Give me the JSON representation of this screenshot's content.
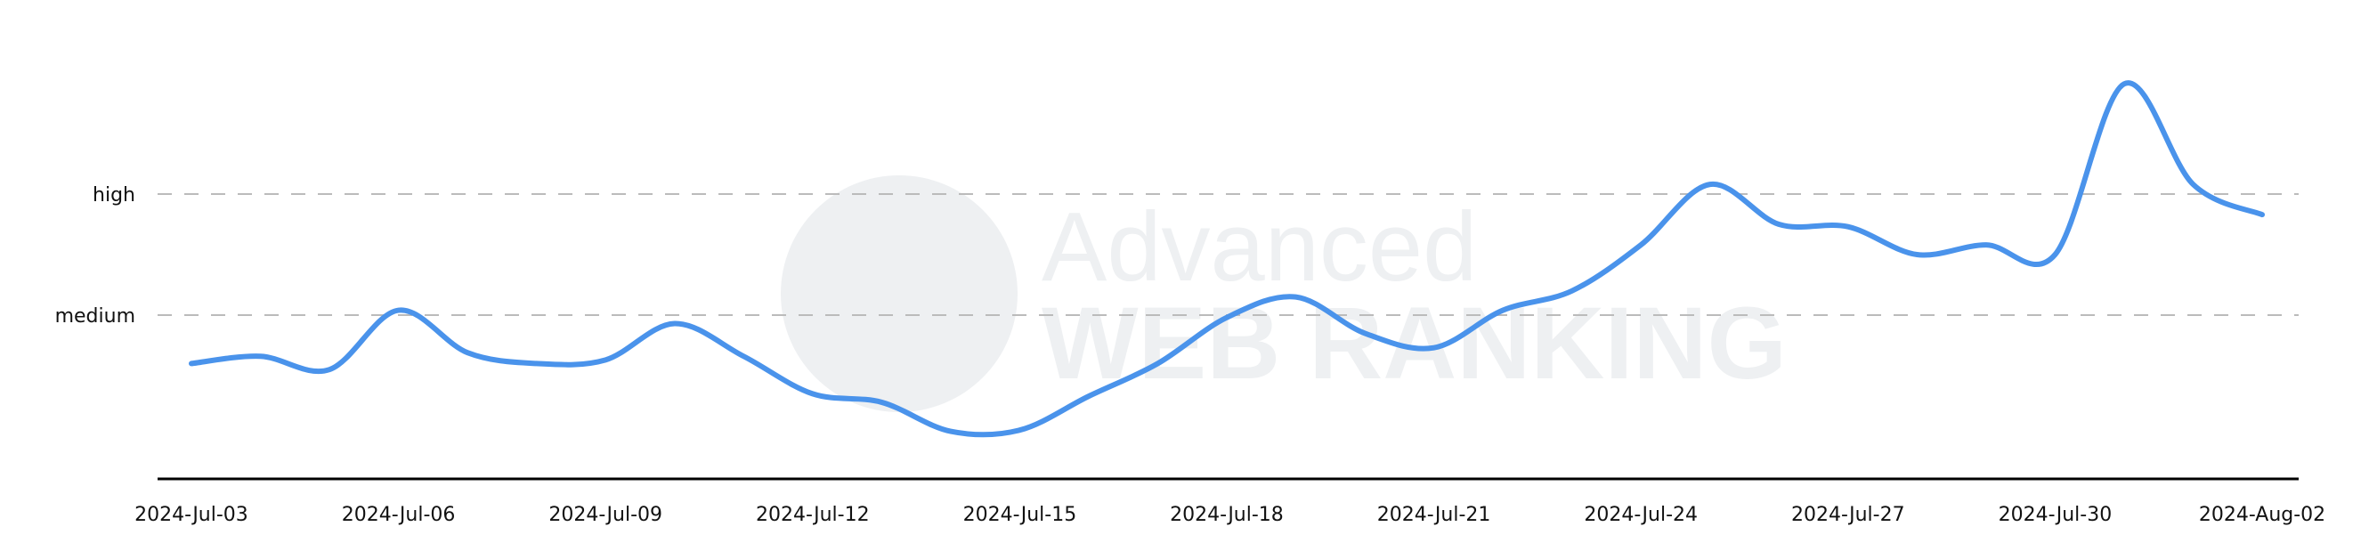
{
  "watermark": {
    "line1": "Advanced",
    "line2": "WEB RANKING"
  },
  "colors": {
    "series": "#4a93eb",
    "grid": "#bbbbbb",
    "axis": "#000000",
    "watermark": "#eef0f2"
  },
  "chart_data": {
    "type": "line",
    "title": "",
    "xlabel": "",
    "ylabel": "",
    "y_tick_labels": [
      {
        "label": "medium",
        "value": 2
      },
      {
        "label": "high",
        "value": 3
      }
    ],
    "ylim": [
      0.7,
      4.1
    ],
    "grid": "horizontal dashed at y ticks",
    "x_tick_labels": [
      "2024-Jul-03",
      "2024-Jul-06",
      "2024-Jul-09",
      "2024-Jul-12",
      "2024-Jul-15",
      "2024-Jul-18",
      "2024-Jul-21",
      "2024-Jul-24",
      "2024-Jul-27",
      "2024-Jul-30",
      "2024-Aug-02"
    ],
    "x": [
      "2024-07-03",
      "2024-07-04",
      "2024-07-05",
      "2024-07-06",
      "2024-07-07",
      "2024-07-08",
      "2024-07-09",
      "2024-07-10",
      "2024-07-11",
      "2024-07-12",
      "2024-07-13",
      "2024-07-14",
      "2024-07-15",
      "2024-07-16",
      "2024-07-17",
      "2024-07-18",
      "2024-07-19",
      "2024-07-20",
      "2024-07-21",
      "2024-07-22",
      "2024-07-23",
      "2024-07-24",
      "2024-07-25",
      "2024-07-26",
      "2024-07-27",
      "2024-07-28",
      "2024-07-29",
      "2024-07-30",
      "2024-07-31",
      "2024-08-01",
      "2024-08-02"
    ],
    "series": [
      {
        "values": [
          1.6,
          1.66,
          1.55,
          2.04,
          1.69,
          1.6,
          1.63,
          1.93,
          1.66,
          1.35,
          1.28,
          1.04,
          1.05,
          1.33,
          1.6,
          1.98,
          2.15,
          1.85,
          1.73,
          2.04,
          2.2,
          2.58,
          3.08,
          2.75,
          2.73,
          2.5,
          2.58,
          2.5,
          3.91,
          3.08,
          2.83
        ]
      }
    ]
  }
}
